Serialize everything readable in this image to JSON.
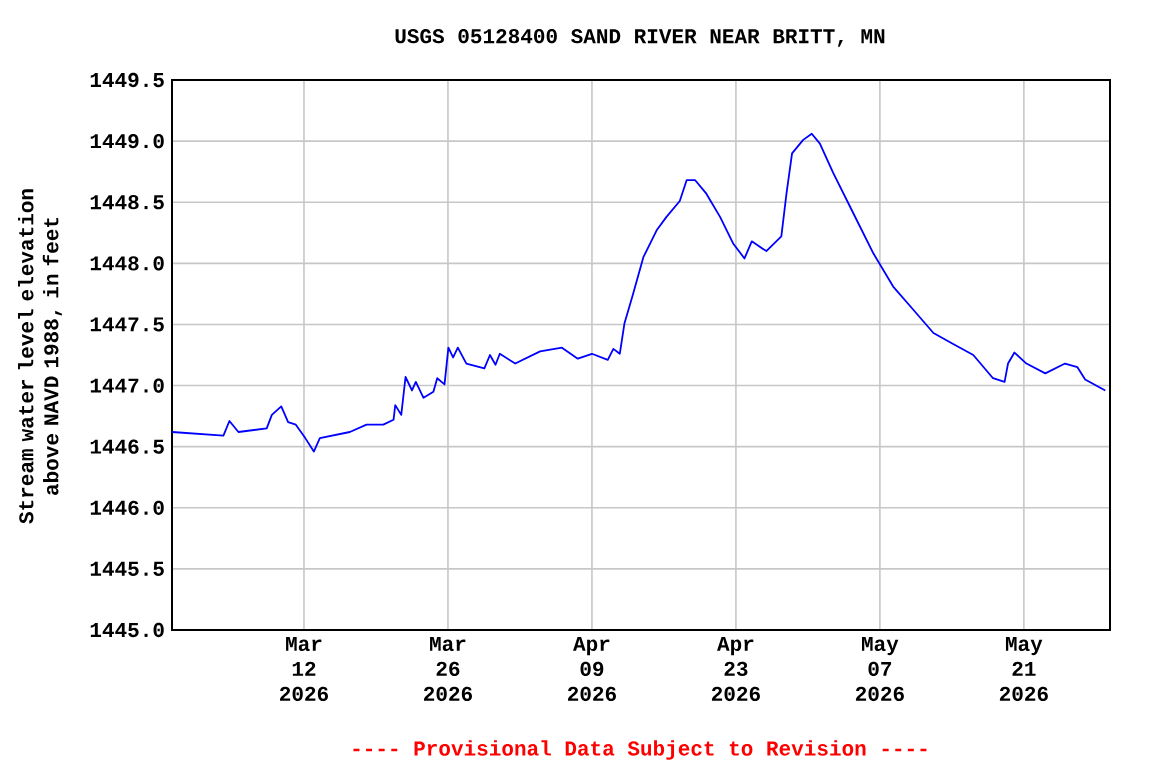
{
  "chart_data": {
    "type": "line",
    "title": "USGS 05128400 SAND RIVER NEAR BRITT, MN",
    "ylabel": "Stream water level elevation above NAVD 1988, in feet",
    "annotations": [
      "---- Provisional Data Subject to Revision ----"
    ],
    "x": [
      "2026-02-27T04:00",
      "2026-03-04T04:00",
      "2026-03-04T18:00",
      "2026-03-05T15:00",
      "2026-03-08T09:00",
      "2026-03-08T21:00",
      "2026-03-09T19:00",
      "2026-03-10T11:00",
      "2026-03-11T05:00",
      "2026-03-12T03:00",
      "2026-03-12T23:00",
      "2026-03-13T13:00",
      "2026-03-16T11:00",
      "2026-03-18T02:00",
      "2026-03-19T17:00",
      "2026-03-20T17:00",
      "2026-03-20T21:00",
      "2026-03-21T11:00",
      "2026-03-21T21:00",
      "2026-03-22T12:00",
      "2026-03-22T21:00",
      "2026-03-23T15:00",
      "2026-03-24T14:00",
      "2026-03-24T23:00",
      "2026-03-25T16:00",
      "2026-03-26T01:00",
      "2026-03-26T12:00",
      "2026-03-26T23:00",
      "2026-03-27T19:00",
      "2026-03-29T13:00",
      "2026-03-30T02:00",
      "2026-03-30T15:00",
      "2026-03-31T01:00",
      "2026-04-01T13:00",
      "2026-04-03T23:00",
      "2026-04-06T02:00",
      "2026-04-07T15:00",
      "2026-04-09T00:00",
      "2026-04-10T13:00",
      "2026-04-11T02:00",
      "2026-04-11T17:00",
      "2026-04-12T04:00",
      "2026-04-13T00:00",
      "2026-04-14T00:00",
      "2026-04-15T07:00",
      "2026-04-16T06:00",
      "2026-04-17T13:00",
      "2026-04-18T05:00",
      "2026-04-19T01:00",
      "2026-04-20T03:00",
      "2026-04-21T11:00",
      "2026-04-22T18:00",
      "2026-04-23T20:00",
      "2026-04-24T13:00",
      "2026-04-25T23:00",
      "2026-04-27T10:00",
      "2026-04-27T22:00",
      "2026-04-28T11:00",
      "2026-04-29T13:00",
      "2026-04-30T09:00",
      "2026-05-01T04:00",
      "2026-05-02T11:00",
      "2026-05-04T10:00",
      "2026-05-06T09:00",
      "2026-05-08T07:00",
      "2026-05-10T06:00",
      "2026-05-12T05:00",
      "2026-05-14T03:00",
      "2026-05-16T02:00",
      "2026-05-18T00:00",
      "2026-05-19T03:00",
      "2026-05-19T11:00",
      "2026-05-20T02:00",
      "2026-05-21T06:00",
      "2026-05-23T02:00",
      "2026-05-25T00:00",
      "2026-05-26T05:00",
      "2026-05-26T23:00",
      "2026-05-28T22:00"
    ],
    "series": [
      {
        "color": "#0000ff",
        "values": [
          1446.62,
          1446.59,
          1446.71,
          1446.62,
          1446.65,
          1446.76,
          1446.83,
          1446.7,
          1446.68,
          1446.57,
          1446.46,
          1446.57,
          1446.62,
          1446.68,
          1446.68,
          1446.72,
          1446.84,
          1446.76,
          1447.07,
          1446.96,
          1447.03,
          1446.9,
          1446.95,
          1447.06,
          1447.01,
          1447.31,
          1447.23,
          1447.31,
          1447.18,
          1447.14,
          1447.25,
          1447.17,
          1447.26,
          1447.18,
          1447.28,
          1447.31,
          1447.22,
          1447.26,
          1447.21,
          1447.3,
          1447.26,
          1447.51,
          1447.75,
          1448.05,
          1448.27,
          1448.38,
          1448.51,
          1448.68,
          1448.68,
          1448.57,
          1448.38,
          1448.16,
          1448.04,
          1448.18,
          1448.1,
          1448.22,
          1448.57,
          1448.9,
          1449.01,
          1449.06,
          1448.98,
          1448.74,
          1448.41,
          1448.08,
          1447.81,
          1447.62,
          1447.43,
          1447.34,
          1447.25,
          1447.06,
          1447.03,
          1447.18,
          1447.27,
          1447.18,
          1447.1,
          1447.18,
          1447.15,
          1447.05,
          1446.96
        ]
      }
    ],
    "xlim": [
      "2026-02-27T04:00",
      "2026-05-29T09:00"
    ],
    "xticks": [
      {
        "value": "2026-03-12",
        "label": "Mar 12 2026"
      },
      {
        "value": "2026-03-26",
        "label": "Mar 26 2026"
      },
      {
        "value": "2026-04-09",
        "label": "Apr 09 2026"
      },
      {
        "value": "2026-04-23",
        "label": "Apr 23 2026"
      },
      {
        "value": "2026-05-07",
        "label": "May 07 2026"
      },
      {
        "value": "2026-05-21",
        "label": "May 21 2026"
      }
    ],
    "ylim": [
      1445.0,
      1449.5
    ],
    "yticks": [
      {
        "value": 1445.0,
        "label": "1445.0"
      },
      {
        "value": 1445.5,
        "label": "1445.5"
      },
      {
        "value": 1446.0,
        "label": "1446.0"
      },
      {
        "value": 1446.5,
        "label": "1446.5"
      },
      {
        "value": 1447.0,
        "label": "1447.0"
      },
      {
        "value": 1447.5,
        "label": "1447.5"
      },
      {
        "value": 1448.0,
        "label": "1448.0"
      },
      {
        "value": 1448.5,
        "label": "1448.5"
      },
      {
        "value": 1449.0,
        "label": "1449.0"
      },
      {
        "value": 1449.5,
        "label": "1449.5"
      }
    ],
    "grid": true,
    "marker": "none",
    "line_style": "solid"
  }
}
